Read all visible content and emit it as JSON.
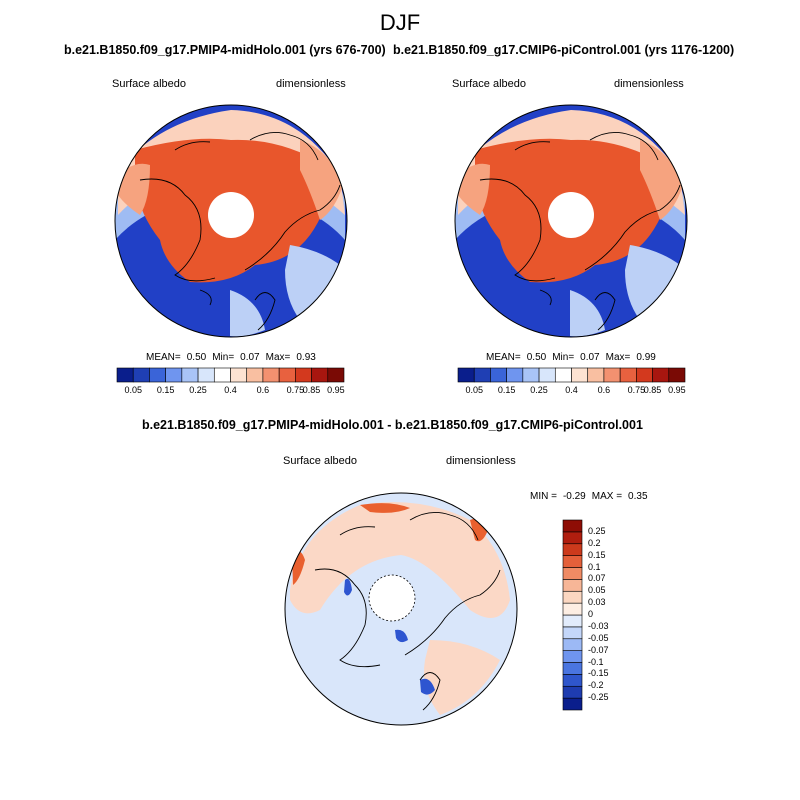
{
  "figure": {
    "season": "DJF"
  },
  "panels": [
    {
      "title": "b.e21.B1850.f09_g17.PMIP4-midHolo.001 (yrs 676-700)",
      "variable": "Surface albedo",
      "units": "dimensionless",
      "stats": {
        "mean_label": "MEAN=",
        "mean": "0.50",
        "min_label": "Min=",
        "min": "0.07",
        "max_label": "Max=",
        "max": "0.93"
      }
    },
    {
      "title": "b.e21.B1850.f09_g17.CMIP6-piControl.001 (yrs 1176-1200)",
      "variable": "Surface albedo",
      "units": "dimensionless",
      "stats": {
        "mean_label": "MEAN=",
        "mean": "0.50",
        "min_label": "Min=",
        "min": "0.07",
        "max_label": "Max=",
        "max": "0.99"
      }
    }
  ],
  "diff_panel": {
    "title": "b.e21.B1850.f09_g17.PMIP4-midHolo.001 - b.e21.B1850.f09_g17.CMIP6-piControl.001",
    "variable": "Surface albedo",
    "units": "dimensionless",
    "minmax": {
      "min_label": "MIN =",
      "min": "-0.29",
      "max_label": "MAX =",
      "max": "0.35"
    }
  },
  "colorbar_main": {
    "colors": [
      "#0a1e8c",
      "#1f3fb4",
      "#3a64d8",
      "#6f95ef",
      "#a9c4f7",
      "#d8e6fb",
      "#ffffff",
      "#fde3d2",
      "#f9bfa1",
      "#f39170",
      "#e8613f",
      "#d3391e",
      "#a8160f",
      "#7a0a05"
    ],
    "labels": [
      "0.05",
      "0.15",
      "0.25",
      "0.4",
      "0.6",
      "0.75",
      "0.85",
      "0.95"
    ]
  },
  "colorbar_diff": {
    "colors": [
      "#0a1e8c",
      "#1e3cb0",
      "#2f56cc",
      "#4a75e0",
      "#6f95ef",
      "#9cb9f5",
      "#c4d7fa",
      "#e2ecfc",
      "#fdeee3",
      "#fbd7c1",
      "#f7b697",
      "#f08b64",
      "#e4603a",
      "#cc3a1c",
      "#b01e0f",
      "#8e0d05"
    ],
    "labels": [
      "0.25",
      "0.2",
      "0.15",
      "0.1",
      "0.07",
      "0.05",
      "0.03",
      "0",
      "-0.03",
      "-0.05",
      "-0.07",
      "-0.1",
      "-0.15",
      "-0.2",
      "-0.25"
    ]
  },
  "map_colors": {
    "ocean": "#2140c6",
    "ocean_edge": "#5f84e6",
    "land_snow": "#e8562c",
    "land_mid": "#f6a37f",
    "land_light": "#fbd2bd",
    "pale_blue": "#bcd0f6",
    "diff_base": "#d9e6fa",
    "diff_pos": "#fbd8c6",
    "diff_strong_pos": "#e9602f",
    "diff_neg": "#2e55d0"
  }
}
